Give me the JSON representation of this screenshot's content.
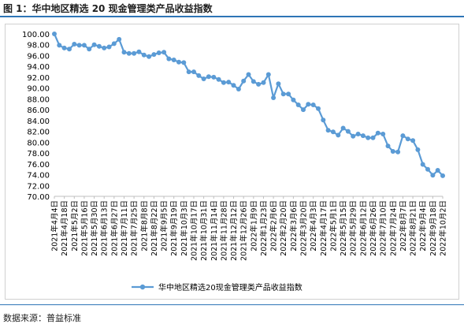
{
  "figure": {
    "title": "图 1：华中地区精选 20 现金管理类产品收益指数",
    "source": "数据来源：普益标准"
  },
  "chart_data": {
    "type": "line",
    "title": "",
    "xlabel": "",
    "ylabel": "",
    "ylim": [
      70,
      100
    ],
    "yticks": [
      "70.00",
      "72.00",
      "74.00",
      "76.00",
      "78.00",
      "80.00",
      "82.00",
      "84.00",
      "86.00",
      "88.00",
      "90.00",
      "92.00",
      "94.00",
      "96.00",
      "98.00",
      "100.00"
    ],
    "x_tick_labels": [
      "2021年4月4日",
      "2021年4月18日",
      "2021年5月2日",
      "2021年5月16日",
      "2021年5月30日",
      "2021年6月13日",
      "2021年6月27日",
      "2021年7月11日",
      "2021年7月25日",
      "2021年8月8日",
      "2021年8月22日",
      "2021年9月5日",
      "2021年9月19日",
      "2021年10月3日",
      "2021年10月17日",
      "2021年10月31日",
      "2021年11月14日",
      "2021年11月28日",
      "2021年12月12日",
      "2021年12月26日",
      "2022年1月9日",
      "2022年1月23日",
      "2022年2月6日",
      "2022年2月20日",
      "2022年3月6日",
      "2022年3月20日",
      "2022年4月3日",
      "2022年4月17日",
      "2022年5月1日",
      "2022年5月15日",
      "2022年5月29日",
      "2022年6月12日",
      "2022年6月26日",
      "2022年7月10日",
      "2022年7月24日",
      "2022年8月7日",
      "2022年8月21日",
      "2022年9月4日",
      "2022年9月18日",
      "2022年10月2日"
    ],
    "grid": false,
    "legend_position": "bottom",
    "series": [
      {
        "name": "华中地区精选20现金管理类产品收益指数",
        "color": "#5b9bd5",
        "values": [
          100.0,
          97.9,
          97.4,
          97.2,
          98.1,
          97.9,
          97.9,
          97.2,
          98.0,
          97.7,
          97.4,
          97.6,
          98.2,
          99.0,
          96.6,
          96.4,
          96.4,
          96.7,
          96.1,
          95.8,
          96.2,
          96.5,
          96.6,
          95.4,
          95.2,
          94.8,
          94.7,
          93.0,
          93.0,
          92.3,
          91.7,
          92.1,
          92.0,
          91.6,
          91.0,
          91.1,
          90.5,
          89.8,
          91.3,
          92.5,
          91.2,
          90.7,
          91.0,
          92.5,
          88.2,
          90.8,
          88.9,
          88.9,
          87.8,
          86.9,
          86.0,
          87.0,
          86.9,
          86.2,
          84.1,
          82.2,
          81.9,
          81.3,
          82.6,
          82.0,
          81.1,
          81.5,
          81.2,
          80.8,
          80.8,
          81.7,
          81.5,
          79.3,
          78.3,
          78.2,
          81.2,
          80.6,
          80.3,
          78.6,
          75.9,
          75.0,
          73.9,
          74.8,
          73.8
        ]
      }
    ]
  }
}
